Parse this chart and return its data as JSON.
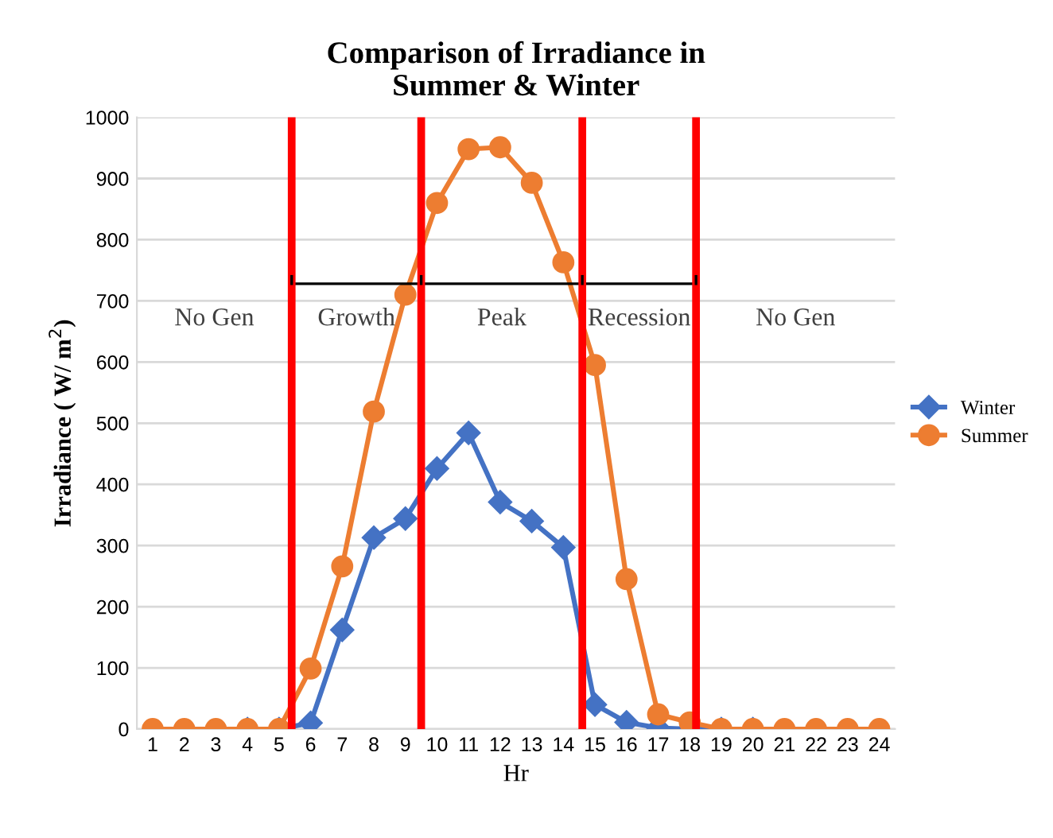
{
  "chart_data": {
    "type": "line",
    "title": "Comparison of Irradiance in\nSummer & Winter",
    "xlabel": "Hr",
    "ylabel": "Irradiance ( W/ m$^{2}$)",
    "x": [
      1,
      2,
      3,
      4,
      5,
      6,
      7,
      8,
      9,
      10,
      11,
      12,
      13,
      14,
      15,
      16,
      17,
      18,
      19,
      20,
      21,
      22,
      23,
      24
    ],
    "series": [
      {
        "name": "Winter",
        "color": "#4472c4",
        "marker": "diamond",
        "values": [
          null,
          null,
          null,
          0,
          0,
          10,
          162,
          313,
          344,
          426,
          484,
          371,
          340,
          297,
          40,
          11,
          2,
          0,
          0,
          0,
          null,
          null,
          null,
          null
        ]
      },
      {
        "name": "Summer",
        "color": "#ed7d31",
        "marker": "circle",
        "values": [
          0,
          0,
          0,
          0,
          0,
          99,
          266,
          519,
          710,
          860,
          948,
          951,
          893,
          763,
          595,
          245,
          24,
          11,
          0,
          0,
          0,
          0,
          0,
          0
        ]
      },
      {
        "type": "line",
        "color": "#000000",
        "x": [
          5.4,
          9.5,
          14.6,
          18.2
        ],
        "values": [
          728,
          728,
          728,
          728
        ]
      }
    ],
    "xlim": [
      0.5,
      24.5
    ],
    "xticks": [
      1,
      2,
      3,
      4,
      5,
      6,
      7,
      8,
      9,
      10,
      11,
      12,
      13,
      14,
      15,
      16,
      17,
      18,
      19,
      20,
      21,
      22,
      23,
      24
    ],
    "ylim": [
      0,
      1000
    ],
    "yticks": [
      0,
      100,
      200,
      300,
      400,
      500,
      600,
      700,
      800,
      900,
      1000
    ],
    "ref_lines": [
      {
        "axis": "x",
        "value": 5.4,
        "color": "#ff0000"
      },
      {
        "axis": "x",
        "value": 9.5,
        "color": "#ff0000"
      },
      {
        "axis": "x",
        "value": 14.6,
        "color": "#ff0000"
      },
      {
        "axis": "x",
        "value": 18.2,
        "color": "#ff0000"
      }
    ],
    "annotations": [
      "No Gen",
      "Growth",
      "Peak",
      "Recession",
      "No Gen"
    ],
    "grid": "y",
    "legend": "right",
    "line_style": "solid"
  }
}
